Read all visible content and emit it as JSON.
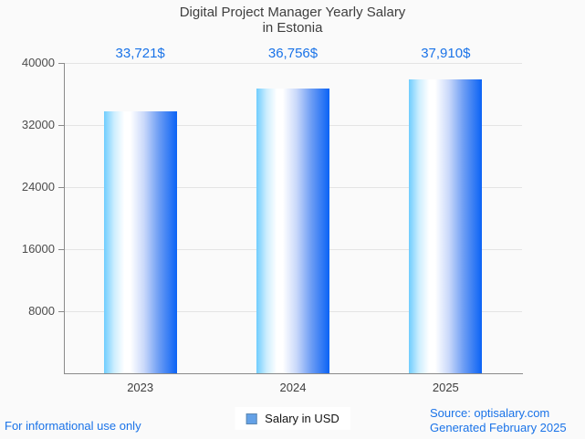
{
  "page": {
    "background": "#fafafa",
    "accent_blue": "#1a73e8"
  },
  "title": {
    "line1": "Digital Project Manager Yearly Salary",
    "line2": "in Estonia"
  },
  "chart_data": {
    "type": "bar",
    "title": "Digital Project Manager Yearly Salary in Estonia",
    "categories": [
      "2023",
      "2024",
      "2025"
    ],
    "series": [
      {
        "name": "Salary in USD",
        "values": [
          33721,
          36756,
          37910
        ]
      }
    ],
    "value_labels": [
      "33,721$",
      "36,756$",
      "37,910$"
    ],
    "xlabel": "",
    "ylabel": "",
    "ylim": [
      0,
      40000
    ],
    "yticks": [
      8000,
      16000,
      24000,
      32000,
      40000
    ],
    "grid": true,
    "legend_position": "bottom",
    "bar_gradient": [
      "#6FCDFE",
      "#FFFFFF",
      "#0B63F5"
    ],
    "value_label_color": "#1a73e8"
  },
  "legend": {
    "label": "Salary in USD",
    "marker_color": "#64A1E7"
  },
  "footer": {
    "left": "For informational use only",
    "source": "Source: optisalary.com",
    "generated": "Generated February 2025"
  }
}
